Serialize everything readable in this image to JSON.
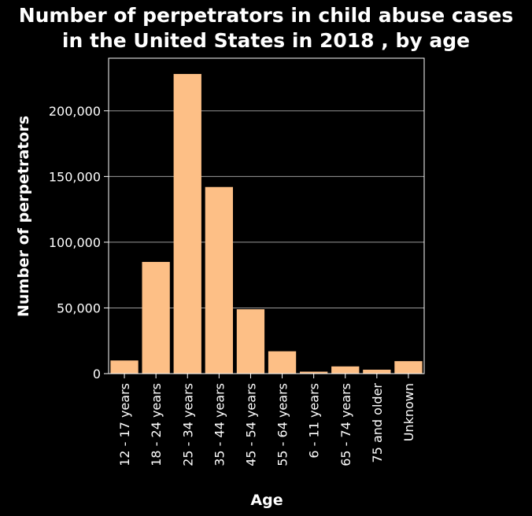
{
  "chart_data": {
    "type": "bar",
    "title_line1": "Number of perpetrators in child abuse cases",
    "title_line2": "in the United States in 2018 , by age",
    "xlabel": "Age",
    "ylabel": "Number of perpetrators",
    "categories": [
      "12 - 17 years",
      "18 - 24 years",
      "25 - 34 years",
      "35 - 44 years",
      "45 - 54 years",
      "55 - 64 years",
      "6 - 11 years",
      "65 - 74 years",
      "75 and older",
      "Unknown"
    ],
    "values": [
      10000,
      85000,
      228000,
      142000,
      49000,
      17000,
      1500,
      5500,
      3000,
      9500
    ],
    "ylim": [
      0,
      240000
    ],
    "yticks": [
      0,
      50000,
      100000,
      150000,
      200000
    ],
    "ytick_labels": [
      "0",
      "50,000",
      "100,000",
      "150,000",
      "200,000"
    ],
    "grid": true,
    "bar_color": "#fdbf86",
    "background_color": "#000000",
    "grid_color": "#9a9a9a"
  }
}
